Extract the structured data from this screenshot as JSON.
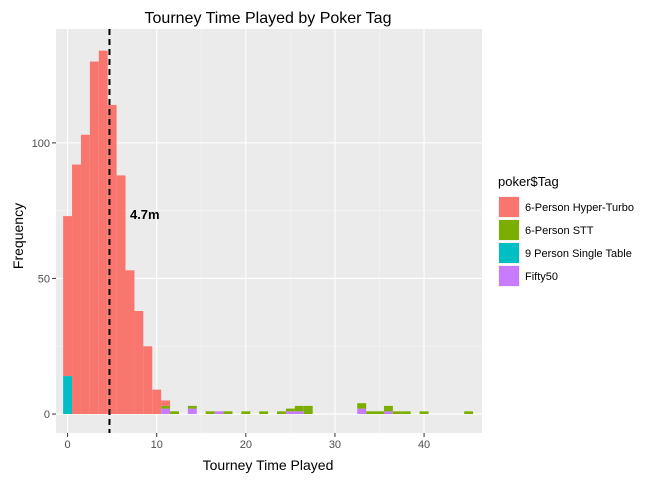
{
  "chart_data": {
    "type": "bar",
    "title": "Tourney Time Played by Poker Tag",
    "xlabel": "Tourney Time Played",
    "ylabel": "Frequency",
    "xlim": [
      -1.3,
      46.5
    ],
    "ylim": [
      -7,
      142
    ],
    "x_ticks": [
      0,
      10,
      20,
      30,
      40
    ],
    "y_ticks": [
      0,
      50,
      100
    ],
    "grid": true,
    "bin_width": 1,
    "legend": {
      "title": "poker$Tag",
      "position": "right"
    },
    "mean_line": {
      "x": 4.7,
      "label": "4.7m",
      "style": "dashed",
      "color": "#000000"
    },
    "series": [
      {
        "name": "6-Person Hyper-Turbo",
        "color": "#F8766D",
        "bins": [
          [
            0,
            59
          ],
          [
            1,
            92
          ],
          [
            2,
            103
          ],
          [
            3,
            130
          ],
          [
            4,
            134
          ],
          [
            5,
            114
          ],
          [
            6,
            88
          ],
          [
            7,
            53
          ],
          [
            8,
            38
          ],
          [
            9,
            25
          ],
          [
            10,
            9
          ],
          [
            11,
            2
          ],
          [
            12,
            0
          ]
        ]
      },
      {
        "name": "6-Person STT",
        "color": "#7CAE00",
        "bins": [
          [
            11,
            1
          ],
          [
            12,
            1
          ],
          [
            14,
            1
          ],
          [
            16,
            1
          ],
          [
            18,
            1
          ],
          [
            20,
            1
          ],
          [
            22,
            1
          ],
          [
            24,
            1
          ],
          [
            25,
            1
          ],
          [
            26,
            2
          ],
          [
            27,
            3
          ],
          [
            33,
            2
          ],
          [
            34,
            1
          ],
          [
            35,
            1
          ],
          [
            36,
            2
          ],
          [
            37,
            1
          ],
          [
            38,
            1
          ],
          [
            40,
            1
          ],
          [
            45,
            1
          ]
        ]
      },
      {
        "name": "9 Person Single Table",
        "color": "#00BFC4",
        "bins": [
          [
            0,
            14
          ]
        ]
      },
      {
        "name": "Fifty50",
        "color": "#C77CFF",
        "bins": [
          [
            11,
            2
          ],
          [
            14,
            2
          ],
          [
            17,
            1
          ],
          [
            25,
            1
          ],
          [
            26,
            1
          ],
          [
            33,
            2
          ],
          [
            36,
            1
          ]
        ]
      }
    ]
  }
}
